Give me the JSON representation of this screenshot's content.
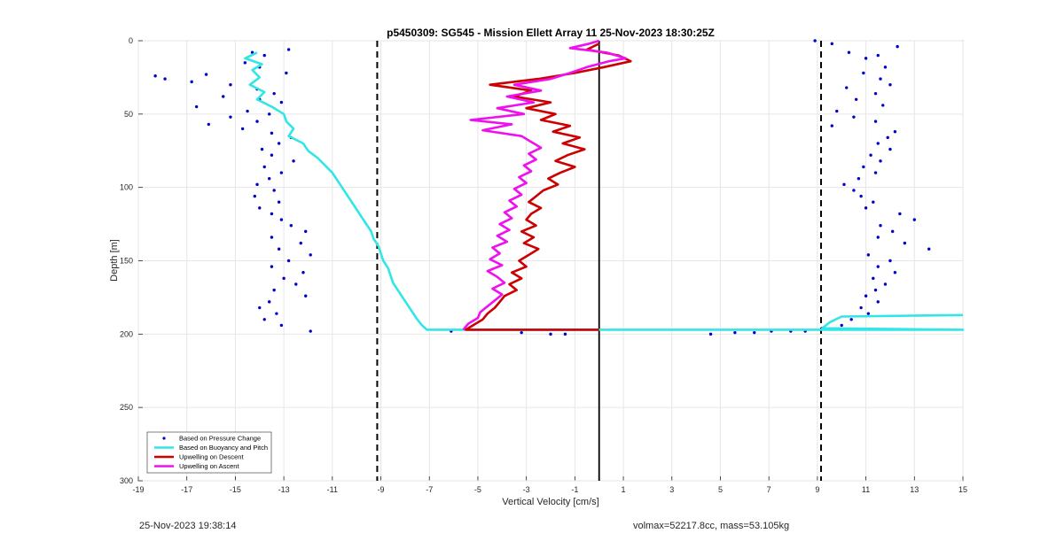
{
  "footer": {
    "timestamp": "25-Nov-2023 19:38:14",
    "params": "volmax=52217.8cc, mass=53.105kg"
  },
  "chart_data": {
    "type": "line",
    "title": "p5450309: SG545 - Mission Ellett Array 11 25-Nov-2023 18:30:25Z",
    "xlabel": "Vertical Velocity [cm/s]",
    "ylabel": "Depth [m]",
    "xlim": [
      -19,
      15
    ],
    "ylim": [
      300,
      0
    ],
    "y_reversed": true,
    "xticks": [
      -19,
      -17,
      -15,
      -13,
      -11,
      -9,
      -7,
      -5,
      -3,
      -1,
      1,
      3,
      5,
      7,
      9,
      11,
      13,
      15
    ],
    "yticks": [
      0,
      50,
      100,
      150,
      200,
      250,
      300
    ],
    "grid": true,
    "legend_position": "bottom-left",
    "reference_lines": [
      {
        "x": -9.15,
        "style": "dashed",
        "color": "#000000"
      },
      {
        "x": 9.15,
        "style": "dashed",
        "color": "#000000"
      },
      {
        "x": 0,
        "style": "solid",
        "color": "#000000"
      }
    ],
    "series": [
      {
        "name": "Based on Pressure Change",
        "style": "points",
        "color": "#0000cc",
        "points": [
          [
            -14.3,
            8
          ],
          [
            -13.8,
            10
          ],
          [
            -12.8,
            6
          ],
          [
            -14.6,
            15
          ],
          [
            -14.0,
            18
          ],
          [
            -12.9,
            22
          ],
          [
            -18.3,
            24
          ],
          [
            -17.9,
            26
          ],
          [
            -16.2,
            23
          ],
          [
            -16.8,
            28
          ],
          [
            -15.2,
            30
          ],
          [
            -14.1,
            33
          ],
          [
            -13.4,
            36
          ],
          [
            -15.5,
            38
          ],
          [
            -14.0,
            40
          ],
          [
            -13.1,
            42
          ],
          [
            -16.6,
            45
          ],
          [
            -14.5,
            48
          ],
          [
            -13.6,
            50
          ],
          [
            -15.2,
            52
          ],
          [
            -14.1,
            55
          ],
          [
            -16.1,
            57
          ],
          [
            -14.7,
            60
          ],
          [
            -13.5,
            63
          ],
          [
            -12.7,
            66
          ],
          [
            -13.2,
            70
          ],
          [
            -13.9,
            74
          ],
          [
            -13.5,
            78
          ],
          [
            -12.6,
            82
          ],
          [
            -13.8,
            86
          ],
          [
            -13.1,
            90
          ],
          [
            -13.6,
            94
          ],
          [
            -14.1,
            98
          ],
          [
            -13.4,
            102
          ],
          [
            -14.2,
            106
          ],
          [
            -13.2,
            110
          ],
          [
            -14.0,
            114
          ],
          [
            -13.5,
            118
          ],
          [
            -13.1,
            122
          ],
          [
            -12.7,
            126
          ],
          [
            -12.1,
            130
          ],
          [
            -13.5,
            134
          ],
          [
            -12.3,
            138
          ],
          [
            -13.2,
            142
          ],
          [
            -11.9,
            146
          ],
          [
            -12.8,
            150
          ],
          [
            -13.5,
            154
          ],
          [
            -12.2,
            158
          ],
          [
            -13.0,
            162
          ],
          [
            -12.5,
            166
          ],
          [
            -13.4,
            170
          ],
          [
            -12.1,
            174
          ],
          [
            -13.6,
            178
          ],
          [
            -14.0,
            182
          ],
          [
            -13.3,
            186
          ],
          [
            -13.8,
            190
          ],
          [
            -13.1,
            194
          ],
          [
            -11.9,
            198
          ],
          [
            -6.1,
            198
          ],
          [
            -3.2,
            199
          ],
          [
            -2.0,
            200
          ],
          [
            -1.4,
            200
          ],
          [
            4.6,
            200
          ],
          [
            5.6,
            199
          ],
          [
            6.4,
            199
          ],
          [
            7.1,
            198
          ],
          [
            7.9,
            198
          ],
          [
            8.5,
            198
          ],
          [
            8.9,
            0
          ],
          [
            9.6,
            2
          ],
          [
            10.3,
            8
          ],
          [
            11.0,
            12
          ],
          [
            11.5,
            10
          ],
          [
            12.3,
            4
          ],
          [
            11.8,
            18
          ],
          [
            10.9,
            22
          ],
          [
            11.6,
            26
          ],
          [
            12.0,
            30
          ],
          [
            10.2,
            32
          ],
          [
            11.4,
            36
          ],
          [
            10.6,
            40
          ],
          [
            11.7,
            44
          ],
          [
            9.8,
            48
          ],
          [
            10.5,
            52
          ],
          [
            11.4,
            55
          ],
          [
            9.6,
            58
          ],
          [
            12.2,
            62
          ],
          [
            11.9,
            66
          ],
          [
            11.5,
            70
          ],
          [
            12.0,
            74
          ],
          [
            11.2,
            78
          ],
          [
            11.6,
            82
          ],
          [
            10.9,
            86
          ],
          [
            11.4,
            90
          ],
          [
            10.7,
            94
          ],
          [
            10.1,
            98
          ],
          [
            10.5,
            102
          ],
          [
            10.8,
            106
          ],
          [
            11.3,
            110
          ],
          [
            11.0,
            114
          ],
          [
            12.4,
            118
          ],
          [
            13.0,
            122
          ],
          [
            11.6,
            126
          ],
          [
            12.1,
            130
          ],
          [
            11.5,
            134
          ],
          [
            12.6,
            138
          ],
          [
            13.6,
            142
          ],
          [
            11.1,
            146
          ],
          [
            12.0,
            150
          ],
          [
            11.5,
            154
          ],
          [
            12.2,
            158
          ],
          [
            11.3,
            162
          ],
          [
            11.8,
            166
          ],
          [
            11.4,
            170
          ],
          [
            11.0,
            174
          ],
          [
            11.5,
            178
          ],
          [
            10.8,
            182
          ],
          [
            11.1,
            186
          ],
          [
            10.4,
            190
          ],
          [
            10.0,
            194
          ],
          [
            9.2,
            196
          ]
        ]
      },
      {
        "name": "Based on Buoyancy and Pitch",
        "style": "line",
        "color": "#33e6e6",
        "points": [
          [
            -14.1,
            8
          ],
          [
            -14.6,
            12
          ],
          [
            -13.9,
            16
          ],
          [
            -14.3,
            20
          ],
          [
            -14.0,
            25
          ],
          [
            -14.4,
            30
          ],
          [
            -13.8,
            35
          ],
          [
            -14.1,
            40
          ],
          [
            -13.5,
            45
          ],
          [
            -13.0,
            50
          ],
          [
            -12.9,
            55
          ],
          [
            -12.6,
            60
          ],
          [
            -12.8,
            65
          ],
          [
            -12.2,
            70
          ],
          [
            -12.0,
            75
          ],
          [
            -11.6,
            80
          ],
          [
            -11.3,
            85
          ],
          [
            -11.0,
            90
          ],
          [
            -10.8,
            95
          ],
          [
            -10.6,
            100
          ],
          [
            -10.4,
            105
          ],
          [
            -10.2,
            110
          ],
          [
            -10.0,
            115
          ],
          [
            -9.8,
            120
          ],
          [
            -9.6,
            125
          ],
          [
            -9.4,
            130
          ],
          [
            -9.3,
            135
          ],
          [
            -9.1,
            140
          ],
          [
            -9.0,
            145
          ],
          [
            -8.9,
            150
          ],
          [
            -8.7,
            155
          ],
          [
            -8.6,
            160
          ],
          [
            -8.5,
            165
          ],
          [
            -8.3,
            170
          ],
          [
            -8.1,
            175
          ],
          [
            -7.9,
            180
          ],
          [
            -7.7,
            185
          ],
          [
            -7.5,
            190
          ],
          [
            -7.3,
            194
          ],
          [
            -7.1,
            197
          ],
          [
            15.0,
            197
          ],
          [
            9.2,
            196
          ],
          [
            9.5,
            192
          ],
          [
            10.0,
            188
          ],
          [
            15.0,
            187
          ]
        ]
      },
      {
        "name": "Upwelling on Descent",
        "style": "line",
        "color": "#cc0000",
        "points": [
          [
            0.0,
            2
          ],
          [
            -0.5,
            6
          ],
          [
            0.8,
            10
          ],
          [
            1.3,
            14
          ],
          [
            0.2,
            18
          ],
          [
            -1.0,
            22
          ],
          [
            -2.5,
            26
          ],
          [
            -4.5,
            30
          ],
          [
            -2.8,
            34
          ],
          [
            -3.5,
            38
          ],
          [
            -2.0,
            42
          ],
          [
            -3.0,
            46
          ],
          [
            -1.8,
            50
          ],
          [
            -2.4,
            54
          ],
          [
            -1.2,
            58
          ],
          [
            -1.9,
            62
          ],
          [
            -0.8,
            66
          ],
          [
            -1.5,
            70
          ],
          [
            -0.6,
            74
          ],
          [
            -1.3,
            78
          ],
          [
            -1.8,
            82
          ],
          [
            -1.0,
            86
          ],
          [
            -1.6,
            90
          ],
          [
            -2.1,
            94
          ],
          [
            -1.7,
            98
          ],
          [
            -2.3,
            102
          ],
          [
            -2.6,
            106
          ],
          [
            -2.9,
            110
          ],
          [
            -2.4,
            114
          ],
          [
            -2.8,
            118
          ],
          [
            -3.0,
            122
          ],
          [
            -2.6,
            126
          ],
          [
            -3.2,
            130
          ],
          [
            -2.7,
            134
          ],
          [
            -3.1,
            138
          ],
          [
            -2.5,
            142
          ],
          [
            -2.9,
            146
          ],
          [
            -3.3,
            150
          ],
          [
            -3.0,
            154
          ],
          [
            -3.6,
            158
          ],
          [
            -3.2,
            162
          ],
          [
            -3.7,
            166
          ],
          [
            -3.4,
            170
          ],
          [
            -3.9,
            174
          ],
          [
            -4.1,
            178
          ],
          [
            -4.3,
            182
          ],
          [
            -4.6,
            186
          ],
          [
            -4.8,
            190
          ],
          [
            -5.2,
            194
          ],
          [
            -5.5,
            197
          ],
          [
            0.0,
            197
          ]
        ]
      },
      {
        "name": "Upwelling on Ascent",
        "style": "line",
        "color": "#ee11ee",
        "points": [
          [
            -5.6,
            197
          ],
          [
            -5.4,
            193
          ],
          [
            -5.0,
            189
          ],
          [
            -4.9,
            185
          ],
          [
            -4.6,
            181
          ],
          [
            -4.3,
            177
          ],
          [
            -4.0,
            173
          ],
          [
            -4.4,
            169
          ],
          [
            -3.9,
            165
          ],
          [
            -4.2,
            161
          ],
          [
            -4.6,
            157
          ],
          [
            -4.0,
            153
          ],
          [
            -4.5,
            149
          ],
          [
            -4.1,
            145
          ],
          [
            -4.4,
            141
          ],
          [
            -3.8,
            137
          ],
          [
            -4.2,
            133
          ],
          [
            -3.7,
            129
          ],
          [
            -4.1,
            125
          ],
          [
            -3.6,
            121
          ],
          [
            -3.9,
            117
          ],
          [
            -3.4,
            113
          ],
          [
            -3.7,
            109
          ],
          [
            -3.2,
            105
          ],
          [
            -3.5,
            101
          ],
          [
            -3.0,
            97
          ],
          [
            -3.3,
            93
          ],
          [
            -2.8,
            89
          ],
          [
            -3.1,
            85
          ],
          [
            -2.6,
            81
          ],
          [
            -2.9,
            77
          ],
          [
            -2.4,
            73
          ],
          [
            -2.8,
            69
          ],
          [
            -3.2,
            65
          ],
          [
            -4.8,
            61
          ],
          [
            -3.6,
            57
          ],
          [
            -5.3,
            54
          ],
          [
            -3.1,
            50
          ],
          [
            -4.2,
            46
          ],
          [
            -2.7,
            42
          ],
          [
            -3.8,
            38
          ],
          [
            -2.4,
            34
          ],
          [
            -3.5,
            30
          ],
          [
            -2.0,
            26
          ],
          [
            -1.2,
            22
          ],
          [
            -0.5,
            18
          ],
          [
            0.4,
            14
          ],
          [
            1.1,
            12
          ],
          [
            0.3,
            8
          ],
          [
            -1.2,
            5
          ],
          [
            -0.4,
            2
          ],
          [
            0.0,
            0
          ]
        ]
      }
    ]
  }
}
